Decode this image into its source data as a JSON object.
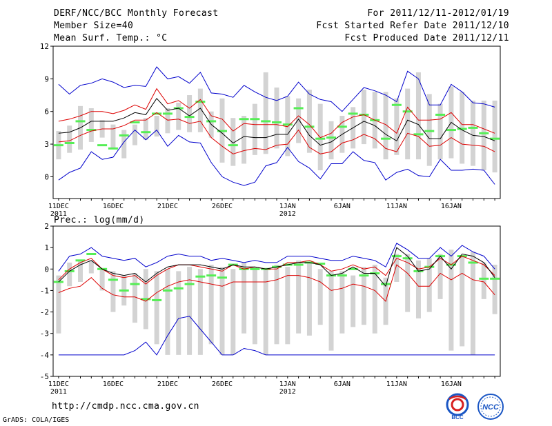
{
  "header": {
    "title": "DERF/NCC/BCC Monthly Forecast",
    "member_size": "Member Size=40",
    "temp_label": "Mean Surf. Temp.: °C",
    "forecast_period": "For 2011/12/11-2012/01/19",
    "started_refer": "Fcst Started Refer Date 2011/12/10",
    "produced": "Fcst Produced Date 2011/12/11"
  },
  "footer": {
    "url": "http://cmdp.ncc.cma.gov.cn",
    "grads": "GrADS: COLA/IGES",
    "logo1_text": "BCC",
    "logo2_text": "NCC"
  },
  "colors": {
    "box": "#d3d3d3",
    "obs": "#55ee55",
    "mean": "#000000",
    "spread": "#dd0000",
    "extreme": "#0000cc",
    "axis": "#000000"
  },
  "chart_data": [
    {
      "type": "box",
      "title": "Mean Surf. Temp.: °C",
      "x_tick_labels": [
        "11DEC",
        "16DEC",
        "21DEC",
        "26DEC",
        "1JAN",
        "6JAN",
        "11JAN",
        "16JAN"
      ],
      "x_tick_days": [
        1,
        6,
        11,
        16,
        22,
        27,
        32,
        37
      ],
      "x_year_labels": [
        {
          "day": 1,
          "label": "2011"
        },
        {
          "day": 22,
          "label": "2012"
        }
      ],
      "ylim": [
        -2,
        12
      ],
      "yticks": [
        0,
        3,
        6,
        9,
        12
      ],
      "box_low": [
        1.6,
        2.2,
        2.5,
        3.2,
        3.6,
        2.6,
        1.7,
        2.9,
        3.4,
        3.7,
        4.0,
        4.3,
        4.1,
        4.1,
        3.6,
        1.3,
        1.0,
        1.2,
        2.0,
        2.1,
        2.6,
        1.9,
        3.1,
        2.2,
        0.6,
        1.6,
        2.2,
        2.6,
        3.0,
        2.6,
        1.6,
        2.0,
        1.6,
        1.6,
        1.0,
        1.6,
        1.7,
        1.2,
        1.0,
        0.6,
        0.4
      ],
      "box_high": [
        4.2,
        4.7,
        6.5,
        6.3,
        5.2,
        4.8,
        4.3,
        4.8,
        5.4,
        5.6,
        6.3,
        6.8,
        7.5,
        8.1,
        6.0,
        7.2,
        5.4,
        5.6,
        6.7,
        9.6,
        8.2,
        7.4,
        7.2,
        8.0,
        6.7,
        5.1,
        5.6,
        6.4,
        8.0,
        7.8,
        7.8,
        7.2,
        8.1,
        9.6,
        7.6,
        6.7,
        8.3,
        7.8,
        7.0,
        7.0,
        7.0
      ],
      "obs": [
        2.9,
        3.1,
        5.1,
        4.3,
        2.9,
        2.6,
        3.8,
        5.0,
        4.1,
        5.8,
        5.8,
        6.3,
        5.5,
        6.9,
        5.1,
        4.2,
        2.9,
        5.3,
        5.3,
        5.1,
        5.0,
        4.8,
        6.3,
        4.6,
        3.5,
        3.6,
        4.6,
        5.8,
        5.7,
        5.2,
        3.5,
        6.6,
        6.0,
        3.9,
        4.2,
        5.7,
        4.3,
        4.4,
        4.5,
        4.0,
        3.5
      ],
      "series": [
        {
          "name": "max",
          "color": "extreme",
          "values": [
            8.5,
            7.6,
            8.4,
            8.6,
            9.0,
            8.7,
            8.2,
            8.4,
            8.3,
            10.1,
            9.0,
            9.2,
            8.6,
            9.6,
            7.7,
            7.6,
            7.3,
            8.4,
            7.8,
            7.3,
            7.0,
            7.4,
            8.7,
            7.6,
            7.1,
            6.9,
            6.0,
            7.1,
            8.2,
            7.9,
            7.5,
            6.9,
            9.7,
            9.0,
            6.6,
            6.6,
            8.5,
            7.8,
            6.8,
            6.7,
            6.4
          ]
        },
        {
          "name": "upper",
          "color": "spread",
          "values": [
            5.1,
            5.3,
            5.6,
            6.0,
            6.0,
            5.8,
            6.1,
            6.6,
            6.2,
            8.1,
            6.7,
            7.0,
            6.3,
            7.1,
            5.6,
            5.3,
            4.2,
            4.9,
            4.8,
            4.8,
            4.8,
            4.6,
            5.6,
            4.8,
            3.6,
            4.0,
            5.0,
            5.5,
            5.7,
            5.2,
            4.8,
            4.0,
            6.4,
            5.2,
            5.2,
            5.3,
            5.9,
            4.8,
            4.8,
            4.4,
            4.0
          ]
        },
        {
          "name": "mean",
          "color": "mean",
          "values": [
            4.0,
            4.1,
            4.5,
            5.1,
            5.1,
            5.1,
            5.4,
            5.9,
            5.7,
            7.2,
            6.1,
            6.3,
            5.6,
            6.3,
            4.8,
            4.0,
            3.1,
            3.7,
            3.6,
            3.6,
            3.9,
            3.9,
            5.3,
            3.8,
            2.9,
            3.2,
            3.9,
            4.5,
            5.1,
            4.7,
            3.9,
            3.3,
            5.2,
            4.8,
            3.5,
            3.5,
            5.0,
            4.3,
            3.8,
            3.7,
            3.3
          ]
        },
        {
          "name": "lower",
          "color": "spread",
          "values": [
            3.2,
            3.3,
            3.8,
            4.2,
            4.4,
            4.4,
            4.7,
            5.2,
            5.2,
            5.9,
            5.2,
            5.3,
            4.9,
            5.1,
            3.6,
            2.8,
            2.1,
            2.4,
            2.6,
            2.5,
            2.9,
            3.0,
            4.3,
            2.7,
            2.1,
            2.3,
            3.1,
            3.4,
            3.9,
            3.5,
            2.6,
            2.3,
            4.0,
            3.7,
            2.8,
            2.9,
            3.6,
            3.0,
            2.9,
            2.8,
            2.3
          ]
        },
        {
          "name": "min",
          "color": "extreme",
          "values": [
            -0.3,
            0.4,
            0.8,
            2.3,
            1.6,
            1.8,
            3.2,
            4.3,
            3.4,
            4.3,
            2.8,
            3.8,
            3.2,
            3.1,
            1.3,
            0.0,
            -0.5,
            -0.8,
            -0.5,
            1.0,
            1.3,
            2.7,
            1.4,
            0.8,
            -0.2,
            1.2,
            1.2,
            2.3,
            1.5,
            1.3,
            -0.3,
            0.4,
            0.7,
            0.1,
            0.0,
            1.6,
            0.6,
            0.6,
            0.7,
            0.6,
            -0.7
          ]
        }
      ]
    },
    {
      "type": "box",
      "title": "Prec.: log(mm/d)",
      "x_tick_labels": [
        "11DEC",
        "16DEC",
        "21DEC",
        "26DEC",
        "1JAN",
        "6JAN",
        "11JAN",
        "16JAN"
      ],
      "x_tick_days": [
        1,
        6,
        11,
        16,
        22,
        27,
        32,
        37
      ],
      "x_year_labels": [
        {
          "day": 1,
          "label": "2011"
        },
        {
          "day": 22,
          "label": "2012"
        }
      ],
      "ylim": [
        -5,
        2
      ],
      "yticks": [
        -5,
        -4,
        -3,
        -2,
        -1,
        0,
        1,
        2
      ],
      "box_low": [
        -3.0,
        -0.8,
        -0.6,
        -0.2,
        -1.0,
        -2.0,
        -1.7,
        -2.5,
        -2.8,
        -3.5,
        -4.0,
        -4.0,
        -4.0,
        -4.0,
        -3.5,
        -4.0,
        -4.0,
        -3.0,
        -3.5,
        -4.0,
        -3.5,
        -3.5,
        -3.0,
        -3.1,
        -2.6,
        -3.8,
        -3.0,
        -2.7,
        -2.6,
        -3.0,
        -2.6,
        -0.6,
        -2.0,
        -2.3,
        -2.0,
        -1.4,
        -3.8,
        -3.6,
        -4.0,
        -1.4,
        -2.1
      ],
      "box_high": [
        -0.3,
        0.3,
        0.4,
        0.4,
        0.0,
        -0.1,
        -0.3,
        -0.2,
        0.0,
        -0.1,
        0.0,
        -0.1,
        0.1,
        0.0,
        0.2,
        0.1,
        0.0,
        0.3,
        0.1,
        0.0,
        0.2,
        0.1,
        0.4,
        0.3,
        0.0,
        -0.1,
        -0.1,
        -0.3,
        0.1,
        0.2,
        -0.4,
        0.7,
        0.7,
        0.4,
        0.5,
        0.7,
        0.9,
        0.6,
        0.8,
        0.3,
        0.2
      ],
      "obs": [
        -0.6,
        -0.1,
        0.4,
        0.7,
        0.0,
        -0.5,
        -1.0,
        -0.7,
        -1.4,
        -1.45,
        -1.0,
        -0.9,
        -0.7,
        -0.35,
        -0.3,
        -0.4,
        0.2,
        0.0,
        0.0,
        0.0,
        0.1,
        0.2,
        0.2,
        0.3,
        0.25,
        -0.3,
        -0.3,
        0.0,
        -0.3,
        -0.2,
        -0.7,
        0.6,
        0.5,
        -0.1,
        0.1,
        0.6,
        0.2,
        0.6,
        0.3,
        -0.45,
        -0.45
      ],
      "series": [
        {
          "name": "max",
          "color": "extreme",
          "values": [
            -0.1,
            0.6,
            0.7,
            1.0,
            0.6,
            0.5,
            0.4,
            0.5,
            0.1,
            0.3,
            0.6,
            0.7,
            0.6,
            0.6,
            0.4,
            0.5,
            0.4,
            0.3,
            0.4,
            0.3,
            0.3,
            0.6,
            0.6,
            0.6,
            0.5,
            0.4,
            0.4,
            0.6,
            0.5,
            0.4,
            0.1,
            1.2,
            0.9,
            0.5,
            0.5,
            1.0,
            0.6,
            1.1,
            0.8,
            0.6,
            0.0
          ]
        },
        {
          "name": "upper",
          "color": "spread",
          "values": [
            -0.5,
            0.0,
            0.3,
            0.5,
            0.0,
            -0.3,
            -0.4,
            -0.3,
            -0.7,
            -0.3,
            0.0,
            0.2,
            0.2,
            0.1,
            0.0,
            -0.1,
            0.2,
            0.0,
            0.1,
            0.0,
            0.0,
            0.3,
            0.3,
            0.4,
            0.2,
            -0.1,
            0.0,
            0.2,
            0.0,
            0.1,
            -0.3,
            0.5,
            0.3,
            0.0,
            0.1,
            0.5,
            0.2,
            0.6,
            0.4,
            0.2,
            -0.3
          ]
        },
        {
          "name": "mean",
          "color": "mean",
          "values": [
            -0.6,
            -0.1,
            0.2,
            0.4,
            0.0,
            -0.2,
            -0.3,
            -0.2,
            -0.6,
            -0.2,
            0.1,
            0.2,
            0.2,
            0.2,
            0.1,
            0.0,
            0.2,
            0.1,
            0.1,
            0.0,
            0.1,
            0.2,
            0.3,
            0.3,
            0.2,
            -0.3,
            -0.2,
            0.1,
            -0.2,
            -0.2,
            -0.8,
            1.0,
            0.6,
            -0.1,
            0.0,
            0.6,
            0.0,
            0.7,
            0.6,
            0.3,
            -0.4
          ]
        },
        {
          "name": "lower",
          "color": "spread",
          "values": [
            -1.1,
            -0.9,
            -0.8,
            -0.4,
            -0.9,
            -1.2,
            -1.3,
            -1.3,
            -1.5,
            -1.1,
            -0.8,
            -0.6,
            -0.5,
            -0.6,
            -0.7,
            -0.8,
            -0.6,
            -0.6,
            -0.6,
            -0.6,
            -0.5,
            -0.3,
            -0.3,
            -0.4,
            -0.6,
            -1.0,
            -0.9,
            -0.7,
            -0.8,
            -1.0,
            -1.5,
            0.2,
            -0.2,
            -0.8,
            -0.8,
            -0.2,
            -0.5,
            -0.2,
            -0.5,
            -0.6,
            -1.2
          ]
        },
        {
          "name": "min",
          "color": "extreme",
          "values": [
            -4.0,
            -4.0,
            -4.0,
            -4.0,
            -4.0,
            -4.0,
            -4.0,
            -3.8,
            -3.4,
            -4.0,
            -3.1,
            -2.3,
            -2.2,
            -2.8,
            -3.4,
            -4.0,
            -4.0,
            -3.7,
            -3.8,
            -4.0,
            -4.0,
            -4.0,
            -4.0,
            -4.0,
            -4.0,
            -4.0,
            -4.0,
            -4.0,
            -4.0,
            -4.0,
            -4.0,
            -4.0,
            -4.0,
            -4.0,
            -4.0,
            -4.0,
            -4.0,
            -4.0,
            -4.0,
            -4.0,
            -4.0
          ]
        }
      ]
    }
  ]
}
